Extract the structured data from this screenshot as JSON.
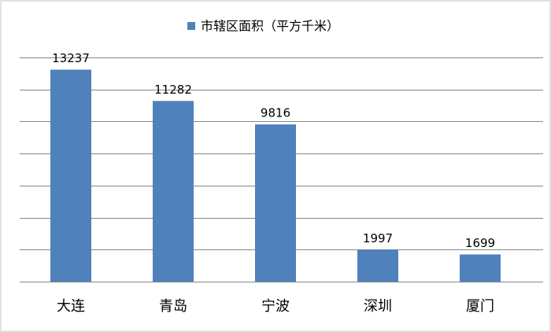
{
  "chart_data": {
    "type": "bar",
    "series": [
      {
        "name": "市辖区面积（平方千米）",
        "color": "#4f81bd",
        "values": [
          13237,
          11282,
          9816,
          1997,
          1699
        ]
      }
    ],
    "categories": [
      "大连",
      "青岛",
      "宁波",
      "深圳",
      "厦门"
    ],
    "ylim": [
      0,
      14000
    ],
    "yticks": [
      0,
      2000,
      4000,
      6000,
      8000,
      10000,
      12000,
      14000
    ],
    "grid": true,
    "legend": "top"
  }
}
